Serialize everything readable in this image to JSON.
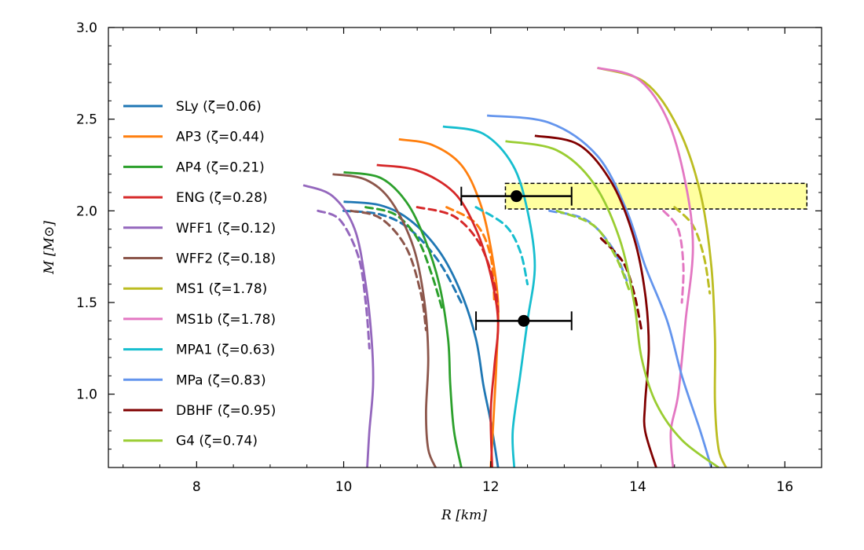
{
  "chart_data": {
    "type": "line",
    "title": "",
    "xlabel": "R [km]",
    "ylabel": "M [M⊙]",
    "xlim": [
      6.8,
      16.5
    ],
    "ylim": [
      0.6,
      3.0
    ],
    "xticks": [
      8,
      10,
      12,
      14,
      16
    ],
    "xtick_labels": [
      "8",
      "10",
      "12",
      "14",
      "16"
    ],
    "yticks": [
      1.0,
      1.5,
      2.0,
      2.5,
      3.0
    ],
    "ytick_labels": [
      "1.0",
      "1.5",
      "2.0",
      "2.5",
      "3.0"
    ],
    "legend_position": "upper-left",
    "series": [
      {
        "name": "SLy",
        "label": "SLy (ζ=0.06)",
        "color": "#1f77b4",
        "solid": [
          [
            10.0,
            2.05
          ],
          [
            10.5,
            2.03
          ],
          [
            10.9,
            1.95
          ],
          [
            11.3,
            1.78
          ],
          [
            11.6,
            1.55
          ],
          [
            11.8,
            1.3
          ],
          [
            11.9,
            1.05
          ],
          [
            12.0,
            0.85
          ],
          [
            12.1,
            0.6
          ]
        ],
        "dashed": [
          [
            10.0,
            2.0
          ],
          [
            10.5,
            1.98
          ],
          [
            10.9,
            1.9
          ],
          [
            11.3,
            1.72
          ],
          [
            11.6,
            1.5
          ]
        ]
      },
      {
        "name": "AP3",
        "label": "AP3 (ζ=0.44)",
        "color": "#ff7f0e",
        "solid": [
          [
            10.75,
            2.39
          ],
          [
            11.2,
            2.36
          ],
          [
            11.6,
            2.25
          ],
          [
            11.85,
            2.05
          ],
          [
            12.0,
            1.8
          ],
          [
            12.1,
            1.5
          ],
          [
            12.08,
            1.2
          ],
          [
            12.05,
            0.95
          ],
          [
            12.0,
            0.6
          ]
        ],
        "dashed": [
          [
            11.4,
            2.02
          ],
          [
            11.8,
            1.93
          ],
          [
            12.0,
            1.75
          ],
          [
            12.05,
            1.5
          ]
        ]
      },
      {
        "name": "AP4",
        "label": "AP4 (ζ=0.21)",
        "color": "#2ca02c",
        "solid": [
          [
            10.0,
            2.21
          ],
          [
            10.5,
            2.18
          ],
          [
            10.85,
            2.05
          ],
          [
            11.1,
            1.85
          ],
          [
            11.3,
            1.6
          ],
          [
            11.42,
            1.3
          ],
          [
            11.45,
            1.05
          ],
          [
            11.5,
            0.8
          ],
          [
            11.6,
            0.6
          ]
        ],
        "dashed": [
          [
            10.3,
            2.02
          ],
          [
            10.7,
            1.98
          ],
          [
            11.0,
            1.85
          ],
          [
            11.2,
            1.65
          ],
          [
            11.35,
            1.45
          ]
        ]
      },
      {
        "name": "ENG",
        "label": "ENG (ζ=0.28)",
        "color": "#d62728",
        "solid": [
          [
            10.45,
            2.25
          ],
          [
            11.0,
            2.22
          ],
          [
            11.5,
            2.1
          ],
          [
            11.8,
            1.9
          ],
          [
            12.0,
            1.65
          ],
          [
            12.1,
            1.4
          ],
          [
            12.05,
            1.15
          ],
          [
            12.0,
            0.9
          ],
          [
            12.02,
            0.6
          ]
        ],
        "dashed": [
          [
            11.0,
            2.02
          ],
          [
            11.5,
            1.97
          ],
          [
            11.85,
            1.82
          ],
          [
            12.05,
            1.6
          ],
          [
            12.1,
            1.45
          ]
        ]
      },
      {
        "name": "WFF1",
        "label": "WFF1 (ζ=0.12)",
        "color": "#9467bd",
        "solid": [
          [
            9.45,
            2.14
          ],
          [
            9.85,
            2.08
          ],
          [
            10.15,
            1.9
          ],
          [
            10.3,
            1.6
          ],
          [
            10.38,
            1.3
          ],
          [
            10.4,
            1.05
          ],
          [
            10.35,
            0.8
          ],
          [
            10.32,
            0.6
          ]
        ],
        "dashed": [
          [
            9.65,
            2.0
          ],
          [
            9.95,
            1.95
          ],
          [
            10.2,
            1.75
          ],
          [
            10.3,
            1.5
          ],
          [
            10.35,
            1.25
          ]
        ]
      },
      {
        "name": "WFF2",
        "label": "WFF2 (ζ=0.18)",
        "color": "#8c564b",
        "solid": [
          [
            9.85,
            2.2
          ],
          [
            10.3,
            2.17
          ],
          [
            10.65,
            2.05
          ],
          [
            10.95,
            1.8
          ],
          [
            11.1,
            1.5
          ],
          [
            11.15,
            1.2
          ],
          [
            11.12,
            0.9
          ],
          [
            11.15,
            0.7
          ],
          [
            11.25,
            0.6
          ]
        ],
        "dashed": [
          [
            10.1,
            2.0
          ],
          [
            10.5,
            1.96
          ],
          [
            10.85,
            1.8
          ],
          [
            11.05,
            1.55
          ],
          [
            11.12,
            1.35
          ]
        ]
      },
      {
        "name": "MS1",
        "label": "MS1 (ζ=1.78)",
        "color": "#bcbd22",
        "solid": [
          [
            13.45,
            2.78
          ],
          [
            14.1,
            2.7
          ],
          [
            14.55,
            2.45
          ],
          [
            14.85,
            2.1
          ],
          [
            15.0,
            1.7
          ],
          [
            15.05,
            1.3
          ],
          [
            15.05,
            0.95
          ],
          [
            15.1,
            0.7
          ],
          [
            15.2,
            0.6
          ]
        ],
        "dashed": [
          [
            14.5,
            2.02
          ],
          [
            14.75,
            1.92
          ],
          [
            14.9,
            1.75
          ],
          [
            14.98,
            1.55
          ]
        ]
      },
      {
        "name": "MS1b",
        "label": "MS1b (ζ=1.78)",
        "color": "#e377c2",
        "solid": [
          [
            13.45,
            2.78
          ],
          [
            14.0,
            2.72
          ],
          [
            14.4,
            2.5
          ],
          [
            14.65,
            2.15
          ],
          [
            14.75,
            1.8
          ],
          [
            14.65,
            1.4
          ],
          [
            14.55,
            1.0
          ],
          [
            14.45,
            0.8
          ],
          [
            14.48,
            0.6
          ]
        ],
        "dashed": [
          [
            14.35,
            2.0
          ],
          [
            14.55,
            1.9
          ],
          [
            14.62,
            1.7
          ],
          [
            14.6,
            1.5
          ]
        ]
      },
      {
        "name": "MPA1",
        "label": "MPA1 (ζ=0.63)",
        "color": "#17becf",
        "solid": [
          [
            11.35,
            2.46
          ],
          [
            11.9,
            2.42
          ],
          [
            12.3,
            2.25
          ],
          [
            12.5,
            2.0
          ],
          [
            12.6,
            1.7
          ],
          [
            12.5,
            1.4
          ],
          [
            12.4,
            1.1
          ],
          [
            12.3,
            0.8
          ],
          [
            12.32,
            0.6
          ]
        ],
        "dashed": [
          [
            11.8,
            2.02
          ],
          [
            12.2,
            1.92
          ],
          [
            12.4,
            1.78
          ],
          [
            12.5,
            1.6
          ]
        ]
      },
      {
        "name": "MPa",
        "label": "MPa (ζ=0.83)",
        "color": "#6495ed",
        "solid": [
          [
            11.95,
            2.52
          ],
          [
            12.8,
            2.48
          ],
          [
            13.45,
            2.3
          ],
          [
            13.85,
            2.0
          ],
          [
            14.1,
            1.7
          ],
          [
            14.4,
            1.4
          ],
          [
            14.6,
            1.1
          ],
          [
            14.85,
            0.8
          ],
          [
            15.0,
            0.6
          ]
        ],
        "dashed": [
          [
            12.8,
            2.0
          ],
          [
            13.3,
            1.95
          ],
          [
            13.65,
            1.8
          ],
          [
            13.85,
            1.62
          ]
        ]
      },
      {
        "name": "DBHF",
        "label": "DBHF (ζ=0.95)",
        "color": "#800000",
        "solid": [
          [
            12.6,
            2.41
          ],
          [
            13.2,
            2.36
          ],
          [
            13.65,
            2.15
          ],
          [
            13.95,
            1.85
          ],
          [
            14.1,
            1.55
          ],
          [
            14.15,
            1.25
          ],
          [
            14.1,
            0.95
          ],
          [
            14.1,
            0.8
          ],
          [
            14.25,
            0.6
          ]
        ],
        "dashed": [
          [
            13.5,
            1.85
          ],
          [
            13.8,
            1.72
          ],
          [
            13.95,
            1.55
          ],
          [
            14.05,
            1.35
          ]
        ]
      },
      {
        "name": "G4",
        "label": "G4 (ζ=0.74)",
        "color": "#9acd32",
        "solid": [
          [
            12.2,
            2.38
          ],
          [
            12.9,
            2.33
          ],
          [
            13.4,
            2.15
          ],
          [
            13.75,
            1.85
          ],
          [
            13.95,
            1.5
          ],
          [
            14.05,
            1.2
          ],
          [
            14.25,
            0.95
          ],
          [
            14.6,
            0.75
          ],
          [
            15.1,
            0.6
          ]
        ],
        "dashed": [
          [
            12.9,
            2.0
          ],
          [
            13.4,
            1.92
          ],
          [
            13.7,
            1.75
          ],
          [
            13.9,
            1.55
          ]
        ]
      }
    ],
    "error_points": [
      {
        "x": 12.35,
        "y": 2.08,
        "xerr_low": 11.6,
        "xerr_high": 13.1
      },
      {
        "x": 12.45,
        "y": 1.4,
        "xerr_low": 11.8,
        "xerr_high": 13.1
      }
    ],
    "band": {
      "x0": 12.2,
      "x1": 16.3,
      "y0": 2.01,
      "y1": 2.15,
      "fill": "#ffffa0"
    }
  }
}
